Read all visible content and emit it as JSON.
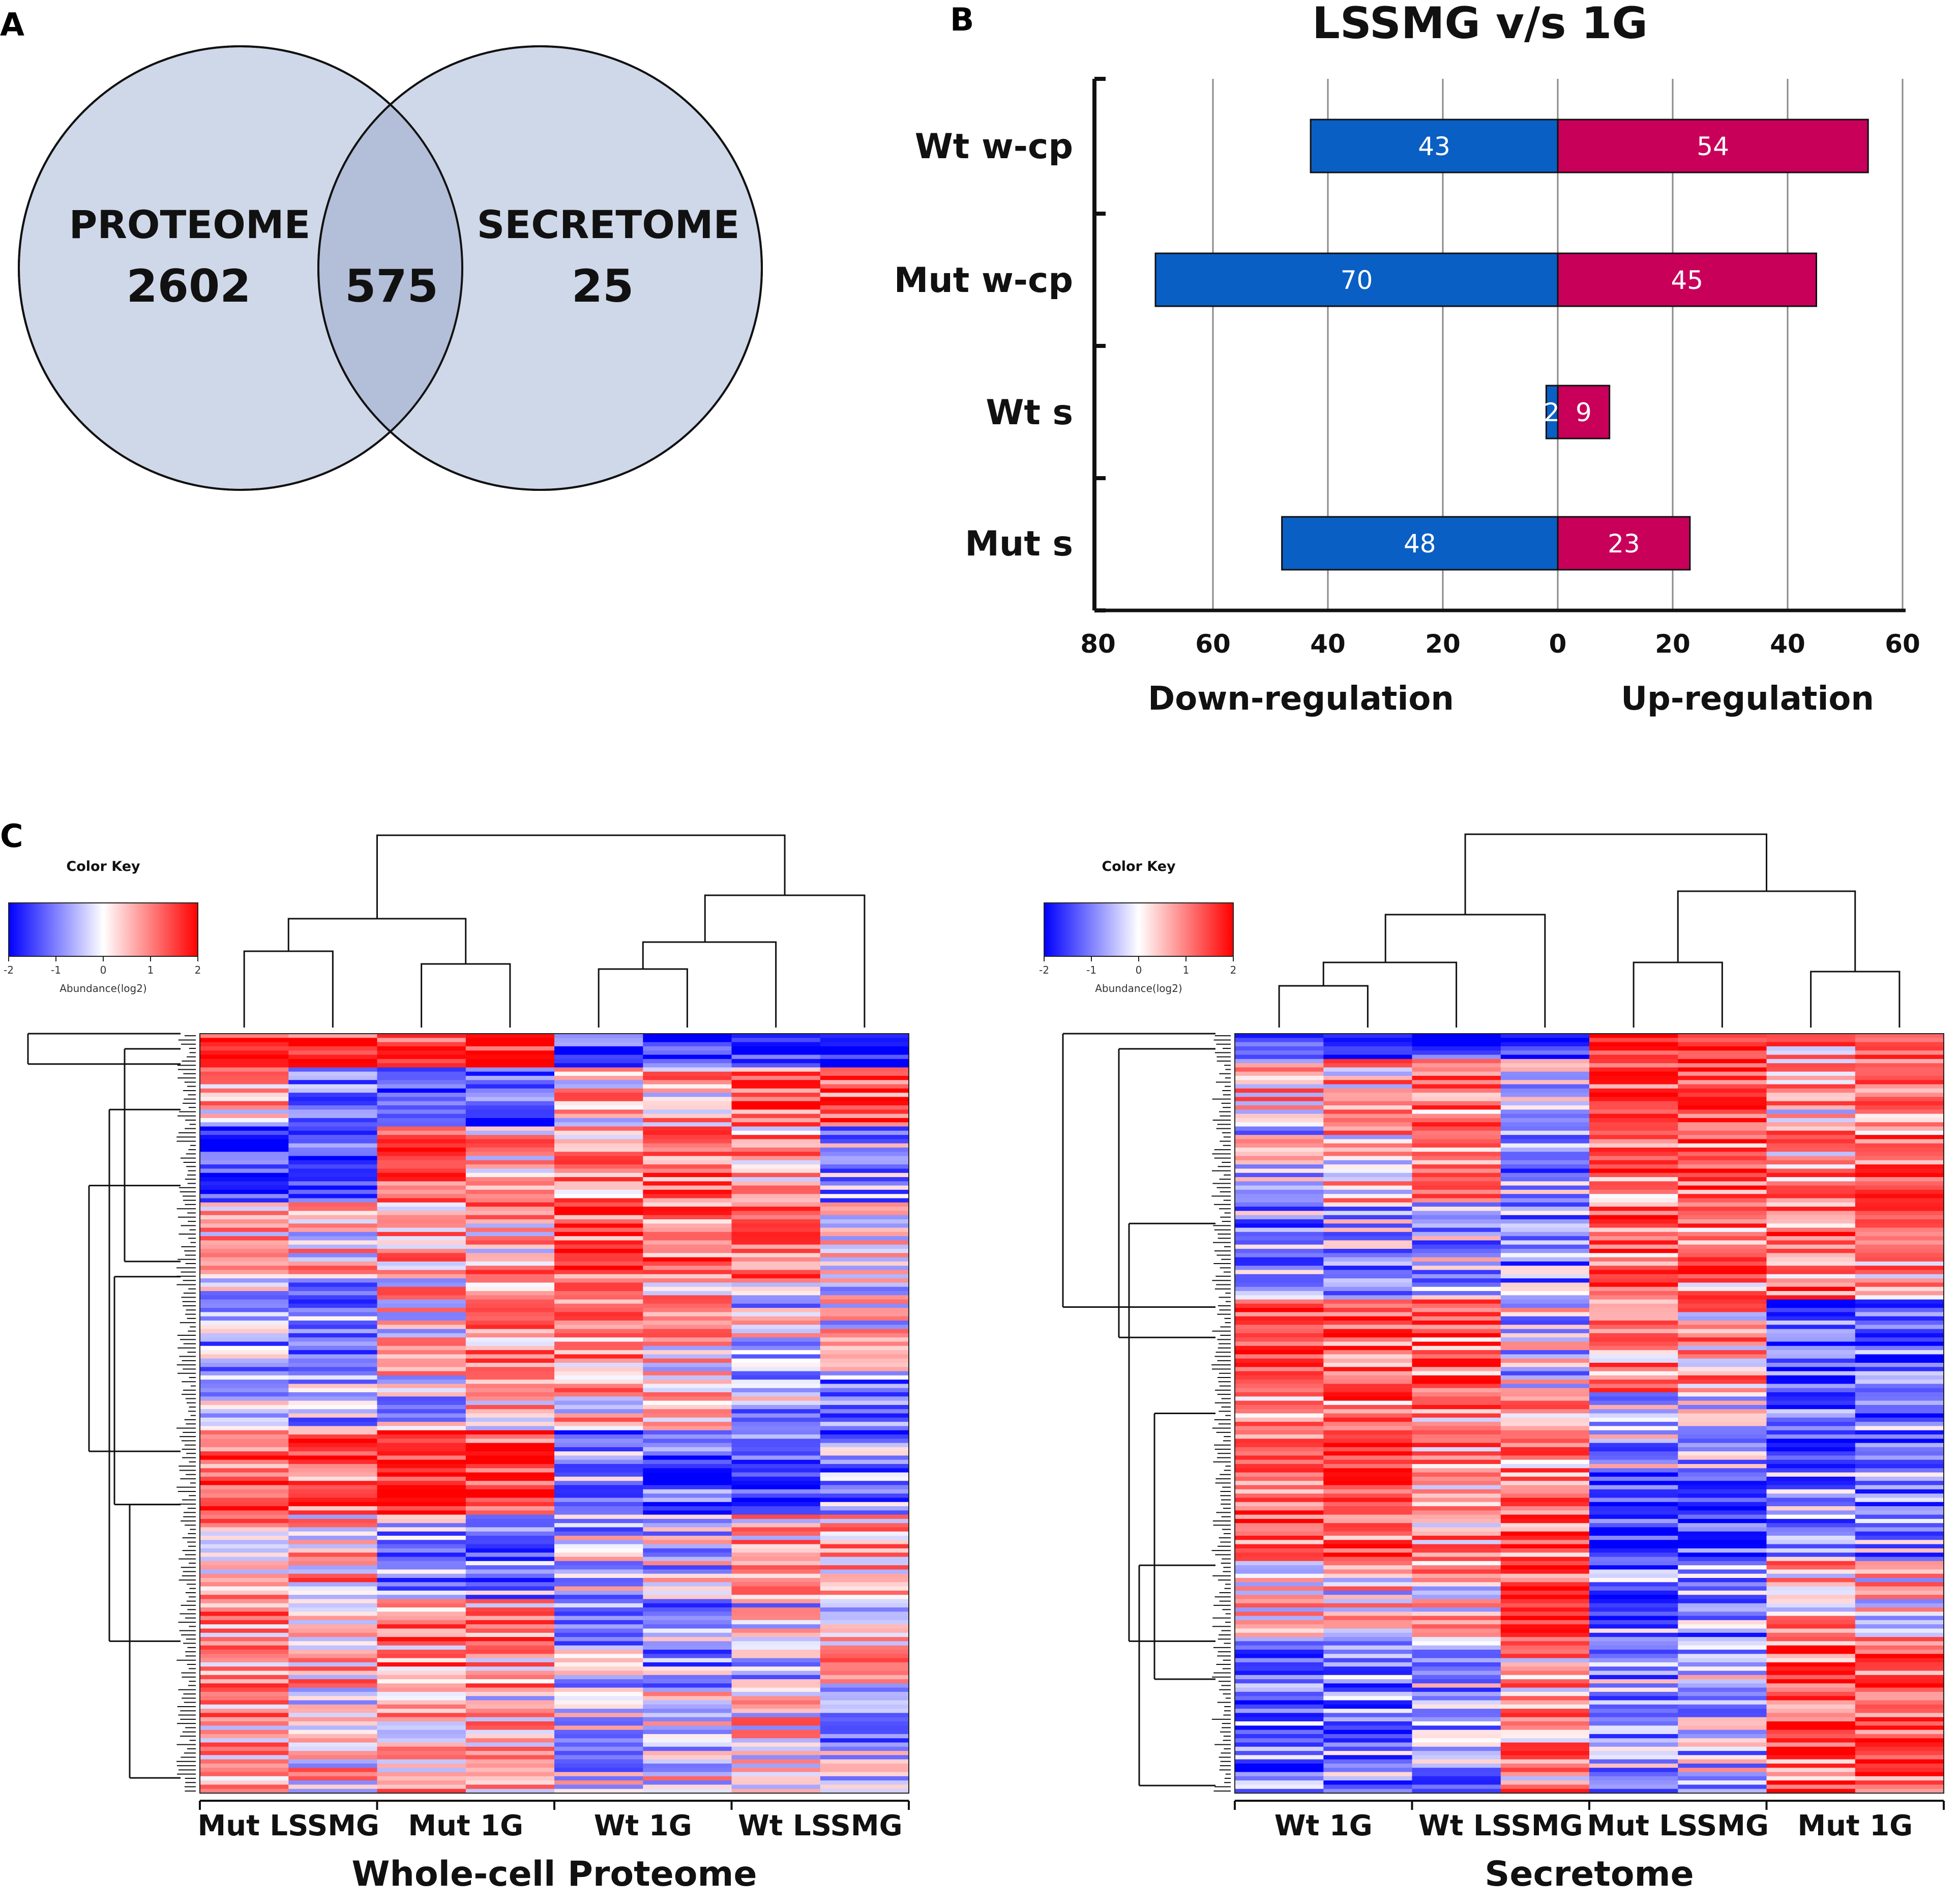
{
  "panels": {
    "a_letter": "A",
    "b_letter": "B",
    "c_letter": "C"
  },
  "venn": {
    "left_label": "PROTEOME",
    "left_count": "2602",
    "overlap_count": "575",
    "right_label": "SECRETOME",
    "right_count": "25",
    "colors": {
      "fill": "#cfd8e8",
      "overlap": "#b3bed8",
      "stroke": "#111111"
    }
  },
  "chart_data": [
    {
      "type": "bar",
      "orientation": "horizontal-diverging",
      "title": "LSSMG v/s 1G",
      "categories": [
        "Wt w-cp",
        "Mut w-cp",
        "Wt s",
        "Mut s"
      ],
      "series": [
        {
          "name": "Down-regulation",
          "values": [
            43,
            70,
            2,
            48
          ],
          "color": "#0a5fc4"
        },
        {
          "name": "Up-regulation",
          "values": [
            54,
            45,
            9,
            23
          ],
          "color": "#c8005a"
        }
      ],
      "xlim_down": [
        80,
        0
      ],
      "xlim_up": [
        0,
        60
      ],
      "xticks_down": [
        "80",
        "60",
        "40",
        "20",
        "0"
      ],
      "xticks_up": [
        "20",
        "40",
        "60"
      ],
      "xlabel_down": "Down-regulation",
      "xlabel_up": "Up-regulation",
      "grid": true
    },
    {
      "type": "heatmap",
      "title": "Whole-cell Proteome",
      "groups": [
        "Mut LSSMG",
        "Mut 1G",
        "Wt 1G",
        "Wt LSSMG"
      ],
      "columns": 8,
      "color_key": {
        "title": "Color Key",
        "label": "Abundance(log2)",
        "ticks": [
          "-2",
          "-1",
          "0",
          "1",
          "2"
        ],
        "range": [
          -2,
          2
        ],
        "low": "#0000ff",
        "mid": "#ffffff",
        "high": "#ff0000"
      }
    },
    {
      "type": "heatmap",
      "title": "Secretome",
      "groups": [
        "Wt 1G",
        "Wt LSSMG",
        "Mut LSSMG",
        "Mut 1G"
      ],
      "columns": 8,
      "color_key": {
        "title": "Color Key",
        "label": "Abundance(log2)",
        "ticks": [
          "-2",
          "-1",
          "0",
          "1",
          "2"
        ],
        "range": [
          -2,
          2
        ],
        "low": "#0000ff",
        "mid": "#ffffff",
        "high": "#ff0000"
      }
    }
  ]
}
